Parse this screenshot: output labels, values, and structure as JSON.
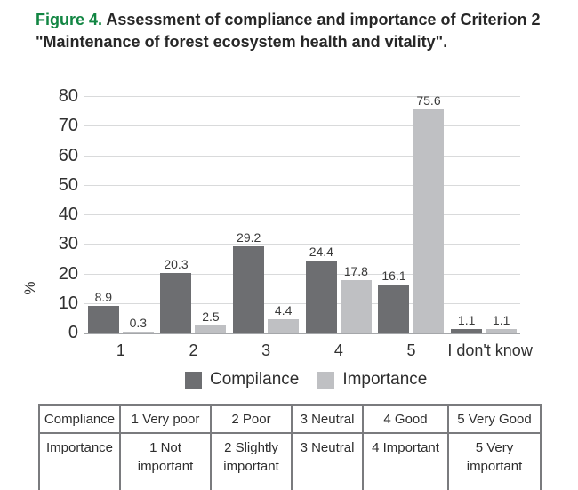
{
  "caption": {
    "label": "Figure 4.",
    "text": "Assessment of compliance and importance of Criterion 2 \"Maintenance of forest ecosystem health and vitality\"."
  },
  "colors": {
    "accent_green": "#128643",
    "compilance_bar": "#6d6e71",
    "importance_bar": "#bfc0c3",
    "gridline": "#d9dadb",
    "axis_line": "#a5a7aa"
  },
  "chart_data": {
    "type": "bar",
    "categories": [
      "1",
      "2",
      "3",
      "4",
      "5",
      "I don't know"
    ],
    "series": [
      {
        "name": "Compilance",
        "color": "#6d6e71",
        "values": [
          8.9,
          20.3,
          29.2,
          24.4,
          16.1,
          1.1
        ]
      },
      {
        "name": "Importance",
        "color": "#bfc0c3",
        "values": [
          0.3,
          2.5,
          4.4,
          17.8,
          75.6,
          1.1
        ]
      }
    ],
    "title": "",
    "xlabel": "",
    "ylabel": "%",
    "ylim": [
      0,
      80
    ],
    "yticks": [
      0,
      10,
      20,
      30,
      40,
      50,
      60,
      70,
      80
    ],
    "grid": true,
    "legend_position": "bottom",
    "value_labels_decimals": 1
  },
  "table": {
    "rows": [
      [
        "Compliance",
        "1 Very poor",
        "2 Poor",
        "3 Neutral",
        "4 Good",
        "5 Very Good"
      ],
      [
        "Importance",
        "1 Not\nimportant",
        "2 Slightly\nimportant",
        "3 Neutral",
        "4 Important",
        "5 Very\nimportant"
      ]
    ]
  }
}
